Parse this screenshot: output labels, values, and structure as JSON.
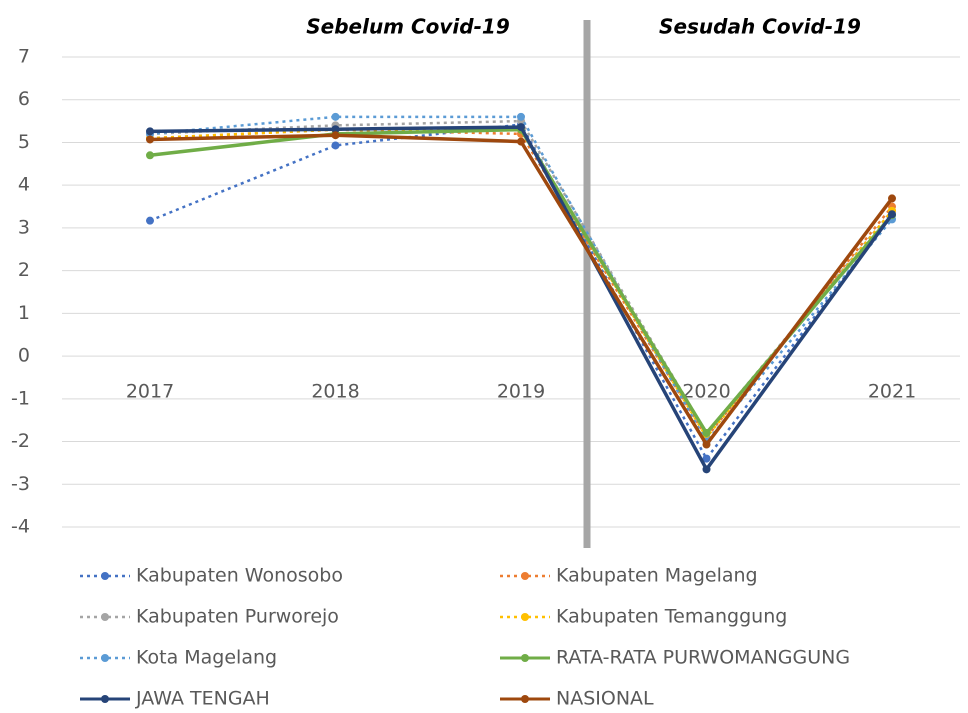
{
  "chart_data": {
    "type": "line",
    "annotations": [
      "Sebelum Covid-19",
      "Sesudah Covid-19"
    ],
    "categories": [
      "2017",
      "2018",
      "2019",
      "2020",
      "2021"
    ],
    "series": [
      {
        "name": "Kabupaten Wonosobo",
        "color": "#4472c4",
        "style": "dotted",
        "values": [
          3.17,
          4.93,
          5.42,
          -2.4,
          3.3
        ]
      },
      {
        "name": "Kabupaten Magelang",
        "color": "#ed7d31",
        "style": "dotted",
        "values": [
          5.1,
          5.3,
          5.2,
          -1.9,
          3.5
        ]
      },
      {
        "name": "Kabupaten Purworejo",
        "color": "#a5a5a5",
        "style": "dotted",
        "values": [
          5.2,
          5.4,
          5.5,
          -1.8,
          3.4
        ]
      },
      {
        "name": "Kabupaten Temanggung",
        "color": "#ffc000",
        "style": "dotted",
        "values": [
          5.1,
          5.3,
          5.3,
          -1.9,
          3.4
        ]
      },
      {
        "name": "Kota Magelang",
        "color": "#5b9bd5",
        "style": "dotted",
        "values": [
          5.2,
          5.6,
          5.6,
          -2.0,
          3.2
        ]
      },
      {
        "name": "RATA-RATA PURWOMANGGUNG",
        "color": "#70ad47",
        "style": "solid",
        "values": [
          4.7,
          5.2,
          5.3,
          -1.8,
          3.3
        ]
      },
      {
        "name": "JAWA TENGAH",
        "color": "#264478",
        "style": "solid",
        "values": [
          5.26,
          5.31,
          5.36,
          -2.65,
          3.32
        ]
      },
      {
        "name": "NASIONAL",
        "color": "#9e480e",
        "style": "solid",
        "values": [
          5.07,
          5.17,
          5.02,
          -2.07,
          3.69
        ]
      }
    ],
    "ylim": [
      -4,
      7
    ],
    "yticks": [
      -4,
      -3,
      -2,
      -1,
      0,
      1,
      2,
      3,
      4,
      5,
      6,
      7
    ],
    "grid": true
  }
}
